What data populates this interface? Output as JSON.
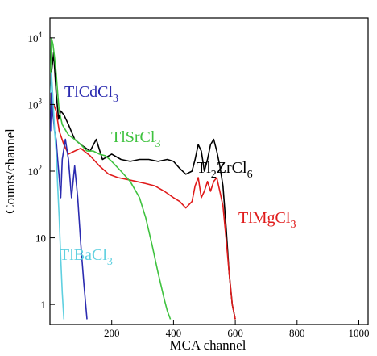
{
  "chart_data": {
    "type": "line",
    "title": "",
    "xlabel": "MCA channel",
    "ylabel": "Counts/channel",
    "xlim": [
      0,
      1030
    ],
    "ylim": [
      0.5,
      20000
    ],
    "y_scale": "log",
    "grid": false,
    "x_ticks": [
      {
        "value": 200,
        "label": "200"
      },
      {
        "value": 400,
        "label": "400"
      },
      {
        "value": 600,
        "label": "600"
      },
      {
        "value": 800,
        "label": "800"
      },
      {
        "value": 1000,
        "label": "1000"
      }
    ],
    "y_ticks": [
      {
        "value": 1,
        "label": "1"
      },
      {
        "value": 10,
        "label": "10"
      },
      {
        "value": 100,
        "label": "10",
        "sup": "2"
      },
      {
        "value": 1000,
        "label": "10",
        "sup": "3"
      },
      {
        "value": 10000,
        "label": "10",
        "sup": "4"
      }
    ],
    "series": [
      {
        "name": "Tl2ZrCl6",
        "color": "#000000",
        "label": {
          "text": "Tl",
          "sub1": "2",
          "mid": "ZrCl",
          "sub2": "6"
        },
        "x": [
          5,
          12,
          20,
          28,
          35,
          45,
          60,
          80,
          100,
          130,
          150,
          170,
          200,
          230,
          260,
          290,
          320,
          350,
          380,
          400,
          420,
          440,
          460,
          470,
          480,
          490,
          500,
          510,
          520,
          530,
          540,
          550,
          560,
          570,
          580,
          590,
          600
        ],
        "y": [
          3000,
          6000,
          1500,
          600,
          800,
          700,
          500,
          300,
          250,
          200,
          300,
          150,
          180,
          150,
          140,
          150,
          150,
          140,
          150,
          140,
          110,
          90,
          100,
          150,
          250,
          200,
          100,
          150,
          250,
          300,
          200,
          120,
          60,
          15,
          3,
          1,
          0.6
        ]
      },
      {
        "name": "TlMgCl3",
        "color": "#e01b1b",
        "label": {
          "text": "TlMgCl",
          "sub1": "3"
        },
        "x": [
          5,
          12,
          20,
          30,
          45,
          60,
          80,
          100,
          130,
          160,
          190,
          220,
          250,
          280,
          310,
          340,
          370,
          400,
          420,
          440,
          460,
          470,
          480,
          490,
          500,
          510,
          520,
          530,
          540,
          550,
          560,
          570,
          580,
          590,
          600
        ],
        "y": [
          600,
          1000,
          800,
          400,
          250,
          180,
          200,
          220,
          170,
          120,
          90,
          80,
          75,
          70,
          65,
          60,
          50,
          40,
          35,
          28,
          35,
          60,
          80,
          40,
          50,
          70,
          50,
          70,
          80,
          50,
          30,
          10,
          3,
          1,
          0.6
        ]
      },
      {
        "name": "TlSrCl3",
        "color": "#3fc23f",
        "label": {
          "text": "TlSrCl",
          "sub1": "3"
        },
        "x": [
          2,
          5,
          10,
          15,
          20,
          25,
          30,
          40,
          60,
          80,
          100,
          120,
          140,
          160,
          180,
          200,
          230,
          260,
          290,
          310,
          330,
          350,
          370,
          380,
          390
        ],
        "y": [
          3000,
          10000,
          8000,
          5000,
          3000,
          1500,
          800,
          500,
          350,
          300,
          250,
          200,
          200,
          180,
          170,
          140,
          100,
          70,
          40,
          20,
          8,
          3,
          1.2,
          0.8,
          0.6
        ]
      },
      {
        "name": "TlCdCl3",
        "color": "#2b2bb0",
        "label": {
          "text": "TlCdCl",
          "sub1": "3"
        },
        "x": [
          2,
          5,
          10,
          15,
          20,
          25,
          30,
          35,
          40,
          50,
          60,
          70,
          80,
          90,
          100,
          110,
          120
        ],
        "y": [
          400,
          1500,
          700,
          400,
          300,
          150,
          80,
          40,
          150,
          300,
          150,
          40,
          120,
          40,
          8,
          2,
          0.6
        ]
      },
      {
        "name": "TlBaCl3",
        "color": "#5fd0e0",
        "label": {
          "text": "TlBaCl",
          "sub1": "3"
        },
        "x": [
          2,
          5,
          10,
          15,
          20,
          25,
          30,
          35,
          40,
          45
        ],
        "y": [
          1500,
          3000,
          1200,
          400,
          200,
          60,
          20,
          5,
          1.5,
          0.6
        ]
      }
    ]
  }
}
